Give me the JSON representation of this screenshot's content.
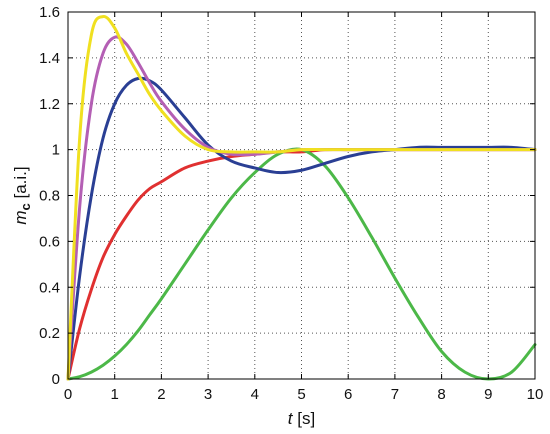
{
  "chart_data": {
    "type": "line",
    "title": "",
    "xlabel": {
      "italic": "t",
      "rest": " [s]"
    },
    "ylabel": {
      "italic": "m",
      "sub": "c",
      "rest": " [a.i.]"
    },
    "xlim": [
      0,
      10
    ],
    "ylim": [
      0,
      1.6
    ],
    "x_ticks": [
      "0",
      "1",
      "2",
      "3",
      "4",
      "5",
      "6",
      "7",
      "8",
      "9",
      "10"
    ],
    "y_ticks": [
      "0",
      "0.2",
      "0.4",
      "0.6",
      "0.8",
      "1",
      "1.2",
      "1.4",
      "1.6"
    ],
    "grid": true,
    "legend": "none",
    "x": [
      0,
      0.25,
      0.5,
      0.75,
      1,
      1.25,
      1.5,
      1.75,
      2,
      2.5,
      3,
      3.5,
      4,
      4.5,
      5,
      5.5,
      6,
      6.5,
      7,
      7.5,
      8,
      8.5,
      9,
      9.5,
      10
    ],
    "series": [
      {
        "color": "#e03030",
        "values": [
          0,
          0.22,
          0.39,
          0.53,
          0.63,
          0.71,
          0.78,
          0.83,
          0.86,
          0.92,
          0.95,
          0.97,
          0.98,
          0.99,
          0.99,
          1.0,
          1.0,
          1.0,
          1.0,
          1.0,
          1.0,
          1.0,
          1.0,
          1.0,
          1.0
        ]
      },
      {
        "color": "#4cb848",
        "values": [
          0,
          0.01,
          0.03,
          0.06,
          0.1,
          0.15,
          0.21,
          0.28,
          0.35,
          0.5,
          0.65,
          0.79,
          0.9,
          0.98,
          1.0,
          0.93,
          0.79,
          0.62,
          0.44,
          0.27,
          0.12,
          0.03,
          0.0,
          0.03,
          0.15
        ]
      },
      {
        "color": "#2a3f94",
        "values": [
          0,
          0.45,
          0.8,
          1.05,
          1.2,
          1.28,
          1.31,
          1.3,
          1.26,
          1.14,
          1.02,
          0.95,
          0.92,
          0.9,
          0.91,
          0.94,
          0.97,
          0.99,
          1.0,
          1.01,
          1.01,
          1.01,
          1.01,
          1.01,
          1.0
        ]
      },
      {
        "color": "#b45fb4",
        "values": [
          0,
          0.75,
          1.2,
          1.42,
          1.49,
          1.46,
          1.38,
          1.29,
          1.21,
          1.09,
          1.01,
          0.98,
          0.98,
          0.99,
          1.0,
          1.0,
          1.0,
          1.0,
          1.0,
          1.0,
          1.0,
          1.0,
          1.0,
          1.0,
          1.0
        ]
      },
      {
        "color": "#f0e020",
        "values": [
          0,
          1.05,
          1.5,
          1.58,
          1.53,
          1.42,
          1.33,
          1.24,
          1.17,
          1.06,
          1.0,
          0.99,
          0.99,
          0.99,
          1.0,
          1.0,
          1.0,
          1.0,
          1.0,
          1.0,
          1.0,
          1.0,
          1.0,
          1.0,
          1.0
        ]
      }
    ]
  }
}
